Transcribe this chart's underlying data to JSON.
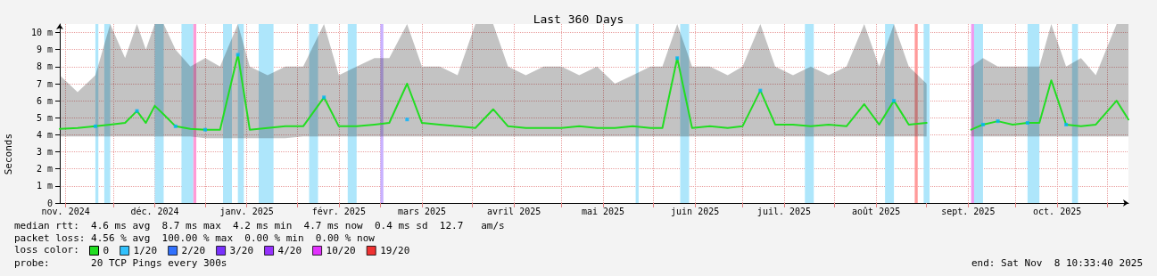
{
  "chart_data": {
    "type": "line",
    "title": "Last 360 Days",
    "xlabel": null,
    "ylabel": "Seconds",
    "xlim": [
      "2024-11-13",
      "2025-11-08"
    ],
    "xticks": [
      {
        "value": "2024-11-15",
        "label": "nov. 2024"
      },
      {
        "value": "2024-12-01",
        "label": null
      },
      {
        "value": "2024-12-15",
        "label": "déc. 2024"
      },
      {
        "value": "2025-01-01",
        "label": null
      },
      {
        "value": "2025-01-15",
        "label": "janv. 2025"
      },
      {
        "value": "2025-02-01",
        "label": null
      },
      {
        "value": "2025-02-15",
        "label": "févr. 2025"
      },
      {
        "value": "2025-03-01",
        "label": null
      },
      {
        "value": "2025-03-15",
        "label": "mars 2025"
      },
      {
        "value": "2025-04-01",
        "label": null
      },
      {
        "value": "2025-04-15",
        "label": "avril 2025"
      },
      {
        "value": "2025-05-01",
        "label": null
      },
      {
        "value": "2025-05-15",
        "label": "mai 2025"
      },
      {
        "value": "2025-06-01",
        "label": null
      },
      {
        "value": "2025-06-15",
        "label": "juin 2025"
      },
      {
        "value": "2025-07-01",
        "label": null
      },
      {
        "value": "2025-07-15",
        "label": "juil. 2025"
      },
      {
        "value": "2025-08-01",
        "label": null
      },
      {
        "value": "2025-08-15",
        "label": "août 2025"
      },
      {
        "value": "2025-09-01",
        "label": null
      },
      {
        "value": "2025-09-15",
        "label": "sept. 2025"
      },
      {
        "value": "2025-10-01",
        "label": null
      },
      {
        "value": "2025-10-15",
        "label": "oct. 2025"
      },
      {
        "value": "2025-11-01",
        "label": null
      }
    ],
    "ylim": [
      0,
      10.5
    ],
    "yticks": [
      0,
      {
        "value": 1,
        "label": "1 m"
      },
      {
        "value": 2,
        "label": "2 m"
      },
      {
        "value": 3,
        "label": "3 m"
      },
      {
        "value": 4,
        "label": "4 m"
      },
      {
        "value": 5,
        "label": "5 m"
      },
      {
        "value": 6,
        "label": "6 m"
      },
      {
        "value": 7,
        "label": "7 m"
      },
      {
        "value": 8,
        "label": "8 m"
      },
      {
        "value": 9,
        "label": "9 m"
      },
      {
        "value": 10,
        "label": "10 m"
      }
    ],
    "grid": true,
    "legend": "bottom left",
    "legend_title": "loss color:",
    "series": [
      {
        "name": "0",
        "marker": "none",
        "color": "#22dd22",
        "x": [
          "2024-11-13",
          "2024-11-19",
          "2024-11-25",
          "2024-11-30",
          "2024-12-05",
          "2024-12-09",
          "2024-12-12",
          "2024-12-15",
          "2024-12-18",
          "2024-12-22",
          "2024-12-27",
          "2025-01-01",
          "2025-01-06",
          "2025-01-12",
          "2025-01-16",
          "2025-01-22",
          "2025-01-28",
          "2025-02-03",
          "2025-02-10",
          "2025-02-15",
          "2025-02-21",
          "2025-02-27",
          "2025-03-04",
          "2025-03-10",
          "2025-03-15",
          "2025-03-21",
          "2025-03-27",
          "2025-04-02",
          "2025-04-08",
          "2025-04-13",
          "2025-04-19",
          "2025-04-25",
          "2025-05-01",
          "2025-05-07",
          "2025-05-13",
          "2025-05-19",
          "2025-05-25",
          "2025-05-31",
          "2025-06-04",
          "2025-06-09",
          "2025-06-14",
          "2025-06-20",
          "2025-06-26",
          "2025-07-01",
          "2025-07-07",
          "2025-07-12",
          "2025-07-18",
          "2025-07-24",
          "2025-07-30",
          "2025-08-05",
          "2025-08-11",
          "2025-08-16",
          "2025-08-21",
          "2025-08-26",
          "2025-09-01",
          "2025-09-08",
          "2025-09-16",
          "2025-09-20",
          "2025-09-25",
          "2025-09-30",
          "2025-10-05",
          "2025-10-09",
          "2025-10-13",
          "2025-10-18",
          "2025-10-23",
          "2025-10-28",
          "2025-11-04",
          "2025-11-08"
        ],
        "values": [
          4.35,
          4.4,
          4.5,
          4.6,
          4.7,
          5.4,
          4.7,
          5.7,
          5.2,
          4.5,
          4.35,
          4.3,
          4.3,
          8.7,
          4.3,
          4.4,
          4.5,
          4.5,
          6.2,
          4.5,
          4.5,
          4.6,
          4.7,
          7.0,
          4.7,
          4.6,
          4.5,
          4.4,
          5.5,
          4.5,
          4.4,
          4.4,
          4.4,
          4.5,
          4.4,
          4.4,
          4.5,
          4.4,
          4.4,
          8.5,
          4.4,
          4.5,
          4.4,
          4.5,
          6.6,
          4.6,
          4.6,
          4.5,
          4.6,
          4.5,
          5.8,
          4.6,
          6.0,
          4.6,
          4.7,
          null,
          4.3,
          4.6,
          4.8,
          4.6,
          4.7,
          4.7,
          7.2,
          4.6,
          4.5,
          4.6,
          6.0,
          4.9
        ],
        "lower": [
          3.9,
          3.9,
          3.9,
          3.9,
          3.9,
          3.9,
          3.9,
          3.9,
          3.9,
          3.9,
          3.9,
          3.8,
          3.8,
          3.8,
          3.8,
          3.8,
          3.8,
          3.9,
          3.9,
          3.9,
          3.9,
          3.9,
          3.9,
          3.9,
          3.9,
          3.9,
          3.9,
          3.9,
          3.9,
          3.9,
          3.9,
          3.9,
          3.9,
          3.9,
          3.9,
          3.9,
          3.9,
          3.9,
          3.9,
          3.9,
          3.9,
          3.9,
          3.9,
          3.9,
          3.9,
          3.9,
          3.9,
          3.9,
          3.9,
          3.9,
          3.9,
          3.9,
          3.9,
          3.9,
          3.9,
          null,
          3.9,
          3.9,
          3.9,
          3.9,
          3.9,
          3.9,
          3.9,
          3.9,
          3.9,
          3.9,
          3.9,
          3.9
        ],
        "upper": [
          7.5,
          6.5,
          7.5,
          10.5,
          8.5,
          10.5,
          9.0,
          10.5,
          10.5,
          9.0,
          8.0,
          8.5,
          8.0,
          10.5,
          8.0,
          7.5,
          8.0,
          8.0,
          10.5,
          7.5,
          8.0,
          8.5,
          8.5,
          10.5,
          8.0,
          8.0,
          7.5,
          10.5,
          10.5,
          8.0,
          7.5,
          8.0,
          8.0,
          7.5,
          8.0,
          7.0,
          7.5,
          8.0,
          8.0,
          10.5,
          8.0,
          8.0,
          7.5,
          8.0,
          10.5,
          8.0,
          7.5,
          8.0,
          7.5,
          8.0,
          10.5,
          8.0,
          10.5,
          8.0,
          7.0,
          null,
          8.0,
          8.5,
          8.0,
          8.0,
          8.0,
          8.0,
          10.5,
          8.0,
          8.5,
          7.5,
          10.5,
          10.5
        ]
      },
      {
        "name": "1/20",
        "type": "scatter",
        "marker": "square",
        "color": "#00b4ff",
        "x": [
          "2024-11-25",
          "2024-12-09",
          "2024-12-22",
          "2025-01-01",
          "2025-01-12",
          "2025-02-10",
          "2025-03-10",
          "2025-06-09",
          "2025-07-07",
          "2025-08-21",
          "2025-09-20",
          "2025-09-25",
          "2025-10-05",
          "2025-10-18"
        ],
        "values": [
          4.5,
          5.4,
          4.5,
          4.3,
          8.7,
          6.2,
          4.9,
          8.5,
          6.6,
          6.0,
          4.6,
          4.8,
          4.7,
          4.6
        ]
      },
      {
        "name": "2/20",
        "type": "scatter",
        "marker": "square",
        "color": "#0050ff"
      },
      {
        "name": "3/20",
        "type": "scatter",
        "marker": "square",
        "color": "#5a00ff"
      },
      {
        "name": "4/20",
        "type": "scatter",
        "marker": "square",
        "color": "#7e00ff"
      },
      {
        "name": "10/20",
        "type": "scatter",
        "marker": "square",
        "color": "#dd00ff"
      },
      {
        "name": "19/20",
        "type": "scatter",
        "marker": "square",
        "color": "#ee0000"
      }
    ],
    "bands": [
      {
        "axis": "x",
        "from": "2024-11-25",
        "to": "2024-11-26",
        "color": "#aee6fb"
      },
      {
        "axis": "x",
        "from": "2024-11-28",
        "to": "2024-11-30",
        "color": "#aee6fb"
      },
      {
        "axis": "x",
        "from": "2024-12-15",
        "to": "2024-12-18",
        "color": "#aee6fb"
      },
      {
        "axis": "x",
        "from": "2024-12-24",
        "to": "2024-12-28",
        "color": "#aee6fb"
      },
      {
        "axis": "x",
        "from": "2024-12-28",
        "to": "2024-12-29",
        "color": "#ff9ad6"
      },
      {
        "axis": "x",
        "from": "2025-01-07",
        "to": "2025-01-10",
        "color": "#aee6fb"
      },
      {
        "axis": "x",
        "from": "2025-01-12",
        "to": "2025-01-14",
        "color": "#aee6fb"
      },
      {
        "axis": "x",
        "from": "2025-01-19",
        "to": "2025-01-24",
        "color": "#aee6fb"
      },
      {
        "axis": "x",
        "from": "2025-02-05",
        "to": "2025-02-08",
        "color": "#aee6fb"
      },
      {
        "axis": "x",
        "from": "2025-02-18",
        "to": "2025-02-21",
        "color": "#aee6fb"
      },
      {
        "axis": "x",
        "from": "2025-03-01",
        "to": "2025-03-02",
        "color": "#c8b0ff"
      },
      {
        "axis": "x",
        "from": "2025-05-26",
        "to": "2025-05-27",
        "color": "#aee6fb"
      },
      {
        "axis": "x",
        "from": "2025-06-10",
        "to": "2025-06-13",
        "color": "#aee6fb"
      },
      {
        "axis": "x",
        "from": "2025-07-22",
        "to": "2025-07-25",
        "color": "#aee6fb"
      },
      {
        "axis": "x",
        "from": "2025-08-18",
        "to": "2025-08-21",
        "color": "#aee6fb"
      },
      {
        "axis": "x",
        "from": "2025-08-28",
        "to": "2025-08-29",
        "color": "#ff9a9a"
      },
      {
        "axis": "x",
        "from": "2025-08-31",
        "to": "2025-09-02",
        "color": "#aee6fb"
      },
      {
        "axis": "x",
        "from": "2025-09-16",
        "to": "2025-09-17",
        "color": "#f09af0"
      },
      {
        "axis": "x",
        "from": "2025-09-17",
        "to": "2025-09-20",
        "color": "#aee6fb"
      },
      {
        "axis": "x",
        "from": "2025-10-05",
        "to": "2025-10-09",
        "color": "#aee6fb"
      },
      {
        "axis": "x",
        "from": "2025-10-20",
        "to": "2025-10-22",
        "color": "#aee6fb"
      }
    ],
    "annotations": [
      "median rtt:  4.6 ms avg  8.7 ms max  4.2 ms min  4.7 ms now  0.4 ms sd  12.7   am/s",
      "packet loss: 4.56 % avg  100.00 % max  0.00 % min  0.00 % now",
      "probe:       20 TCP Pings every 300s",
      "end: Sat Nov  8 10:33:40 2025"
    ]
  }
}
